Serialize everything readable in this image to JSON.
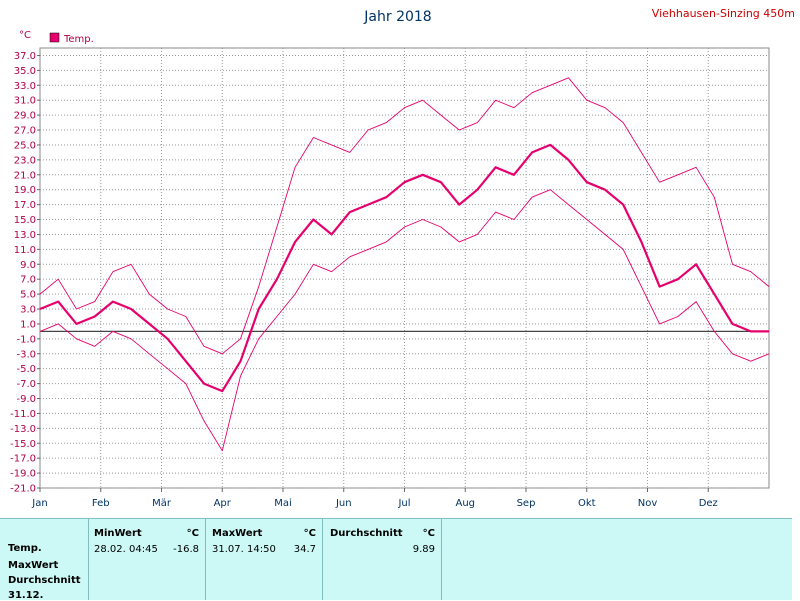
{
  "station": "Viehhausen-Sinzing 450m",
  "chart_data": {
    "type": "line",
    "title": "Jahr 2018",
    "ylabel": "°C",
    "ylim": [
      -21,
      38
    ],
    "yticks": [
      "37.0",
      "35.0",
      "33.0",
      "31.0",
      "29.0",
      "27.0",
      "25.0",
      "23.0",
      "21.0",
      "19.0",
      "17.0",
      "15.0",
      "13.0",
      "11.0",
      "9.0",
      "7.0",
      "5.0",
      "3.0",
      "1.0",
      "-1.0",
      "-3.0",
      "-5.0",
      "-7.0",
      "-9.0",
      "-11.0",
      "-13.0",
      "-15.0",
      "-17.0",
      "-19.0",
      "-21.0"
    ],
    "xlabels": [
      "Jan",
      "Feb",
      "Mär",
      "Apr",
      "Mai",
      "Jun",
      "Jul",
      "Aug",
      "Sep",
      "Okt",
      "Nov",
      "Dez"
    ],
    "grid": true,
    "legend": "top-left",
    "series": [
      {
        "name": "Temp.",
        "color": "#e6006e",
        "role": "max",
        "values": [
          5,
          7,
          3,
          4,
          8,
          9,
          5,
          3,
          2,
          -2,
          -3,
          -1,
          6,
          14,
          22,
          26,
          25,
          24,
          27,
          28,
          30,
          31,
          29,
          27,
          28,
          31,
          30,
          32,
          33,
          34,
          31,
          30,
          28,
          24,
          20,
          21,
          22,
          18,
          9,
          8,
          6
        ]
      },
      {
        "name": "Temp.",
        "color": "#e6006e",
        "role": "mean",
        "values": [
          3,
          4,
          1,
          2,
          4,
          3,
          1,
          -1,
          -4,
          -7,
          -8,
          -4,
          3,
          7,
          12,
          15,
          13,
          16,
          17,
          18,
          20,
          21,
          20,
          17,
          19,
          22,
          21,
          24,
          25,
          23,
          20,
          19,
          17,
          12,
          6,
          7,
          9,
          5,
          1,
          0,
          0
        ]
      },
      {
        "name": "Temp.",
        "color": "#e6006e",
        "role": "min",
        "values": [
          0,
          1,
          -1,
          -2,
          0,
          -1,
          -3,
          -5,
          -7,
          -12,
          -16,
          -6,
          -1,
          2,
          5,
          9,
          8,
          10,
          11,
          12,
          14,
          15,
          14,
          12,
          13,
          16,
          15,
          18,
          19,
          17,
          15,
          13,
          11,
          6,
          1,
          2,
          4,
          0,
          -3,
          -4,
          -3
        ]
      }
    ]
  },
  "stats": {
    "row_labels": [
      "Temp.",
      "MaxWert",
      "Durchschnitt",
      "31.12."
    ],
    "min_header": "MinWert",
    "max_header": "MaxWert",
    "avg_header": "Durchschnitt",
    "unit": "°C",
    "min_time": "28.02.  04:45",
    "min_value": "-16.8",
    "max_time": "31.07.  14:50",
    "max_value": "34.7",
    "avg_value": "9.89"
  }
}
